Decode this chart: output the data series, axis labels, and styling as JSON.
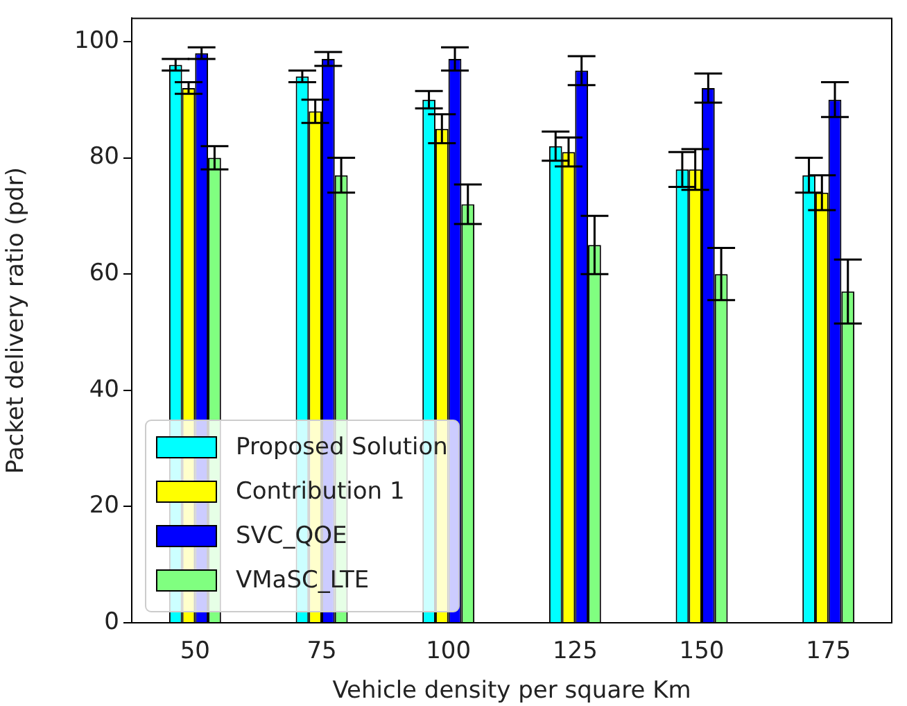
{
  "chart_data": {
    "type": "bar",
    "xlabel": "Vehicle density per square Km",
    "ylabel": "Packet delivery ratio (pdr)",
    "categories": [
      "50",
      "75",
      "100",
      "125",
      "150",
      "175"
    ],
    "ylim": [
      0,
      104
    ],
    "yticks": [
      0,
      20,
      40,
      60,
      80,
      100
    ],
    "grid": false,
    "legend": "bottom left",
    "series": [
      {
        "name": "Proposed Solution",
        "color": "#00ffff",
        "values": [
          96,
          94,
          90,
          82,
          78,
          77
        ],
        "errors": [
          1,
          1,
          1.5,
          2.5,
          3,
          3
        ]
      },
      {
        "name": "Contribution 1",
        "color": "#ffff00",
        "values": [
          92,
          88,
          85,
          81,
          78,
          74
        ],
        "errors": [
          1,
          2,
          2.5,
          2.5,
          3.5,
          3
        ]
      },
      {
        "name": "SVC_QOE",
        "color": "#0000ff",
        "values": [
          98,
          97,
          97,
          95,
          92,
          90
        ],
        "errors": [
          1,
          1.2,
          2,
          2.5,
          2.5,
          3
        ]
      },
      {
        "name": "VMaSC_LTE",
        "color": "#80ff80",
        "values": [
          80,
          77,
          72,
          65,
          60,
          57
        ],
        "errors": [
          2,
          3,
          3.4,
          5,
          4.5,
          5.5
        ]
      }
    ]
  }
}
